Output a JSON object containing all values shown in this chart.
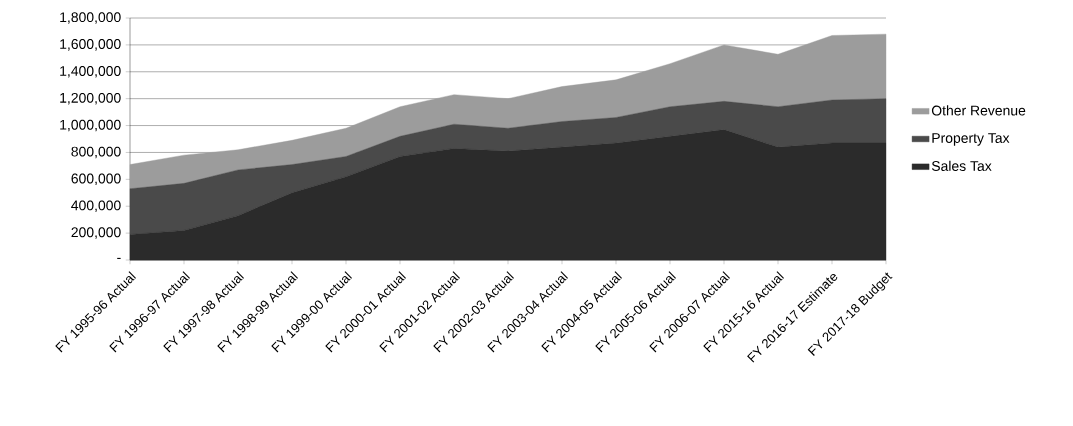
{
  "chart_data": {
    "type": "area",
    "stacked": true,
    "categories": [
      "FY 1995-96 Actual",
      "FY 1996-97 Actual",
      "FY 1997-98 Actual",
      "FY 1998-99 Actual",
      "FY 1999-00 Actual",
      "FY 2000-01 Actual",
      "FY 2001-02 Actual",
      "FY 2002-03 Actual",
      "FY 2003-04 Actual",
      "FY 2004-05 Actual",
      "FY 2005-06 Actual",
      "FY 2006-07 Actual",
      "FY 2015-16 Actual",
      "FY 2016-17 Estimate",
      "FY 2017-18 Budget"
    ],
    "series": [
      {
        "name": "Sales Tax",
        "color": "#2b2b2b",
        "values": [
          190000,
          220000,
          330000,
          500000,
          620000,
          770000,
          830000,
          810000,
          840000,
          870000,
          920000,
          970000,
          840000,
          870000,
          870000
        ]
      },
      {
        "name": "Property Tax",
        "color": "#4a4a4a",
        "values": [
          340000,
          350000,
          340000,
          210000,
          150000,
          150000,
          180000,
          170000,
          190000,
          190000,
          220000,
          210000,
          300000,
          320000,
          330000
        ]
      },
      {
        "name": "Other Revenue",
        "color": "#9c9c9c",
        "values": [
          180000,
          210000,
          150000,
          180000,
          210000,
          220000,
          220000,
          220000,
          260000,
          280000,
          320000,
          420000,
          390000,
          480000,
          480000
        ]
      }
    ],
    "ylim": [
      0,
      1800000
    ],
    "yticks": [
      {
        "value": 0,
        "label": "-"
      },
      {
        "value": 200000,
        "label": "200,000"
      },
      {
        "value": 400000,
        "label": "400,000"
      },
      {
        "value": 600000,
        "label": "600,000"
      },
      {
        "value": 800000,
        "label": "800,000"
      },
      {
        "value": 1000000,
        "label": "1,000,000"
      },
      {
        "value": 1200000,
        "label": "1,200,000"
      },
      {
        "value": 1400000,
        "label": "1,400,000"
      },
      {
        "value": 1600000,
        "label": "1,600,000"
      },
      {
        "value": 1800000,
        "label": "1,800,000"
      }
    ],
    "grid": "y",
    "legend": "right"
  }
}
